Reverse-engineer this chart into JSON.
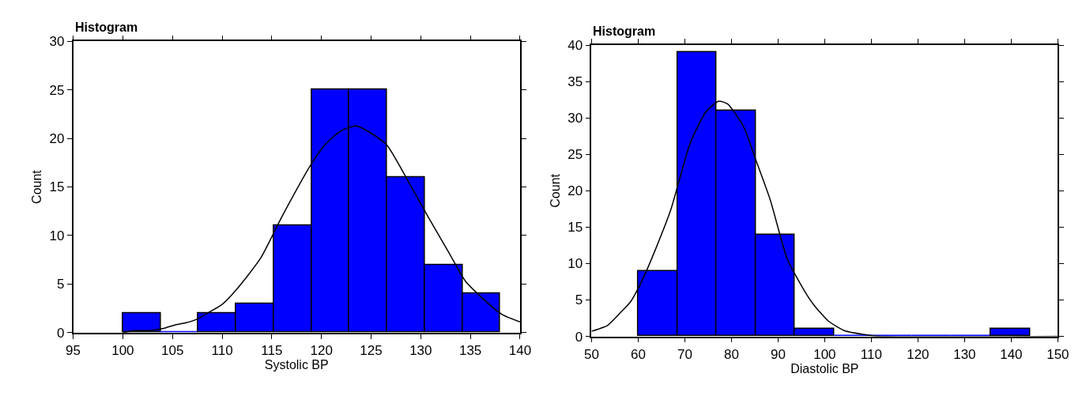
{
  "chart_data": [
    {
      "type": "histogram",
      "title": "Histogram",
      "xlabel": "Systolic BP",
      "ylabel": "Count",
      "xlim": [
        95,
        140
      ],
      "xticks": [
        95,
        100,
        105,
        110,
        115,
        120,
        125,
        130,
        135,
        140
      ],
      "ylim": [
        0,
        30
      ],
      "yticks": [
        0,
        5,
        10,
        15,
        20,
        25,
        30
      ],
      "series": [
        {
          "color": "#0000ff",
          "bins": [
            100,
            103.8,
            107.6,
            111.4,
            115.2,
            119,
            122.8,
            126.6,
            130.4,
            134.2,
            138
          ],
          "values": [
            2,
            0,
            2,
            3,
            11,
            25,
            25,
            16,
            7,
            4
          ]
        },
        {
          "type": "line",
          "color": "#000000",
          "x": [
            100,
            101.2,
            102.6,
            104,
            105.3,
            106.3,
            107.5,
            108.7,
            110,
            111.5,
            113.9,
            116,
            119,
            120.4,
            122,
            123.5,
            124.9,
            126.6,
            129,
            130.7,
            132.8,
            134.5,
            136.9,
            138.3,
            140
          ],
          "values": [
            0,
            0.2,
            0.2,
            0.4,
            0.8,
            1.0,
            1.4,
            2.1,
            2.9,
            4.5,
            7.7,
            11.9,
            17.4,
            19.4,
            20.8,
            21.3,
            20.6,
            19.3,
            15.1,
            12,
            8.3,
            5.3,
            2.9,
            1.8,
            1.1
          ]
        }
      ]
    },
    {
      "type": "histogram",
      "title": "Histogram",
      "xlabel": "Diastolic BP",
      "ylabel": "Count",
      "xlim": [
        50,
        150
      ],
      "xticks": [
        50,
        60,
        70,
        80,
        90,
        100,
        110,
        120,
        130,
        140,
        150
      ],
      "ylim": [
        0,
        40
      ],
      "yticks": [
        0,
        5,
        10,
        15,
        20,
        25,
        30,
        35,
        40
      ],
      "series": [
        {
          "color": "#0000ff",
          "bins": [
            60,
            68.4,
            76.8,
            85.2,
            93.6,
            102,
            110.4,
            118.8,
            127.2,
            135.6,
            144
          ],
          "values": [
            9,
            39,
            31,
            14,
            1,
            0,
            0,
            0,
            0,
            1
          ]
        },
        {
          "type": "line",
          "color": "#000000",
          "x": [
            50,
            53.4,
            56.4,
            58.3,
            61,
            64,
            67,
            71.2,
            74.6,
            77.3,
            79.2,
            82.6,
            85.2,
            88.3,
            92,
            95.8,
            97.7,
            100.8,
            104.2,
            109.1,
            112.1,
            150
          ],
          "values": [
            0.7,
            1.5,
            3.4,
            4.7,
            7.9,
            12.4,
            17.4,
            26.6,
            30.9,
            32.3,
            31.9,
            28.8,
            24.3,
            18.8,
            10.6,
            6.1,
            4.3,
            2.1,
            0.8,
            0.2,
            0,
            0
          ]
        }
      ]
    }
  ]
}
